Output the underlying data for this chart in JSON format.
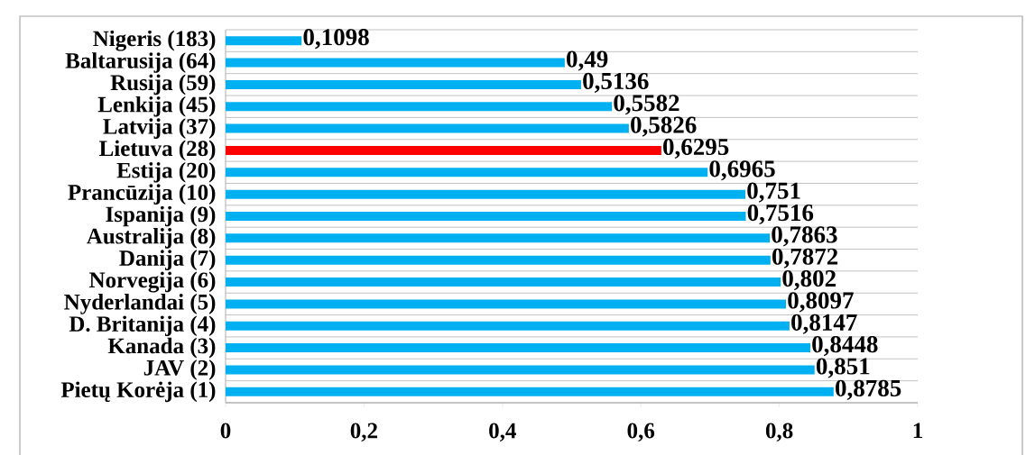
{
  "chart_data": {
    "type": "bar",
    "orientation": "horizontal",
    "categories": [
      "Nigeris (183)",
      "Baltarusija (64)",
      "Rusija (59)",
      "Lenkija (45)",
      "Latvija (37)",
      "Lietuva (28)",
      "Estija (20)",
      "Prancūzija (10)",
      "Ispanija (9)",
      "Australija (8)",
      "Danija (7)",
      "Norvegija (6)",
      "Nyderlandai (5)",
      "D. Britanija (4)",
      "Kanada (3)",
      "JAV (2)",
      "Pietų Korėja (1)"
    ],
    "values": [
      0.1098,
      0.49,
      0.5136,
      0.5582,
      0.5826,
      0.6295,
      0.6965,
      0.751,
      0.7516,
      0.7863,
      0.7872,
      0.802,
      0.8097,
      0.8147,
      0.8448,
      0.851,
      0.8785
    ],
    "value_labels": [
      "0,1098",
      "0,49",
      "0,5136",
      "0,5582",
      "0,5826",
      "0,6295",
      "0,6965",
      "0,751",
      "0,7516",
      "0,7863",
      "0,7872",
      "0,802",
      "0,8097",
      "0,8147",
      "0,8448",
      "0,851",
      "0,8785"
    ],
    "colors": [
      "#00b0f0",
      "#00b0f0",
      "#00b0f0",
      "#00b0f0",
      "#00b0f0",
      "#ff0000",
      "#00b0f0",
      "#00b0f0",
      "#00b0f0",
      "#00b0f0",
      "#00b0f0",
      "#00b0f0",
      "#00b0f0",
      "#00b0f0",
      "#00b0f0",
      "#00b0f0",
      "#00b0f0"
    ],
    "xlim": [
      0,
      1
    ],
    "xticks": [
      0,
      {
        "value": 0.2,
        "label": "0,2"
      },
      {
        "value": 0.4,
        "label": "0,4"
      },
      {
        "value": 0.6,
        "label": "0,6"
      },
      {
        "value": 0.8,
        "label": "0,8"
      },
      1
    ],
    "grid": "y"
  }
}
